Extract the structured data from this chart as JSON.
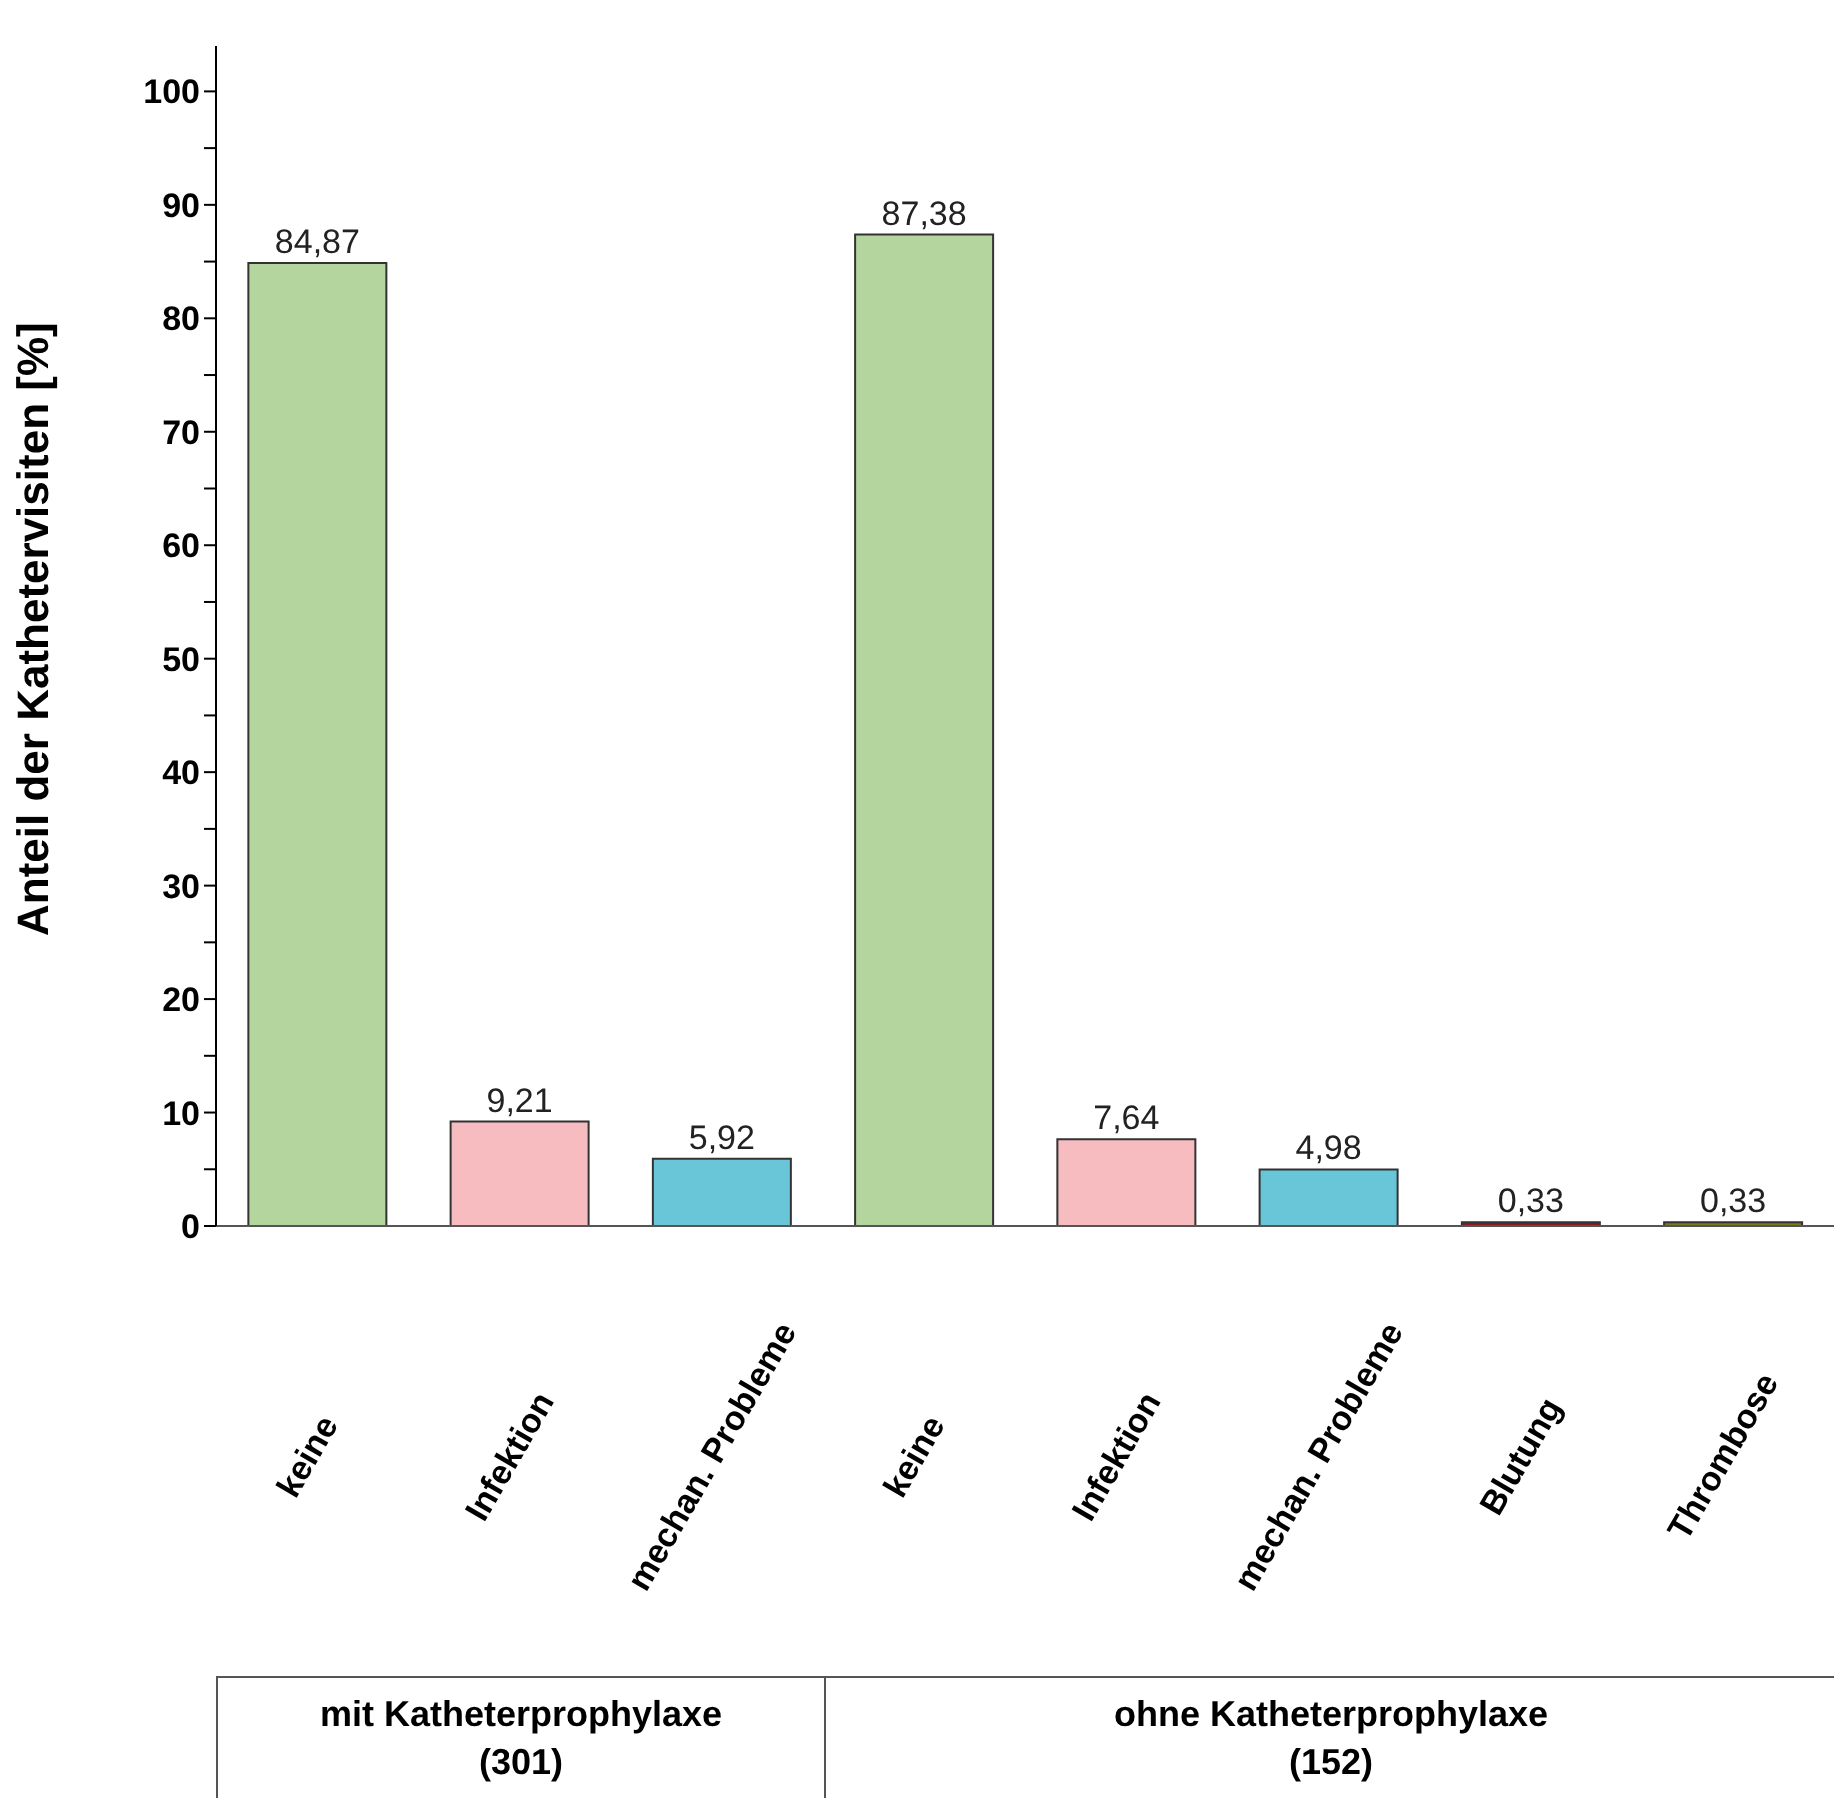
{
  "chart_data": {
    "type": "bar",
    "ylabel": "Anteil der Kathetervisiten [%]",
    "categories": [
      "keine",
      "Infektion",
      "mechan. Probleme",
      "keine",
      "Infektion",
      "mechan. Probleme",
      "Blutung",
      "Thrombose"
    ],
    "values": [
      84.87,
      9.21,
      5.92,
      87.38,
      7.64,
      4.98,
      0.33,
      0.33
    ],
    "value_labels": [
      "84,87",
      "9,21",
      "5,92",
      "87,38",
      "7,64",
      "4,98",
      "0,33",
      "0,33"
    ],
    "colors": [
      "#b5d59e",
      "#f6bcbf",
      "#69c6d9",
      "#b5d59e",
      "#f6bcbf",
      "#69c6d9",
      "#8b1a1a",
      "#7a7a1a"
    ],
    "ylim": [
      0,
      104
    ],
    "yticks": [
      0,
      {
        "value": 5,
        "label": null
      },
      10,
      {
        "value": 15,
        "label": null
      },
      20,
      {
        "value": 25,
        "label": null
      },
      30,
      {
        "value": 35,
        "label": null
      },
      40,
      {
        "value": 45,
        "label": null
      },
      50,
      {
        "value": 55,
        "label": null
      },
      60,
      {
        "value": 65,
        "label": null
      },
      70,
      {
        "value": 75,
        "label": null
      },
      80,
      {
        "value": 85,
        "label": null
      },
      90,
      {
        "value": 95,
        "label": null
      },
      100
    ],
    "annotations": [
      "mit Katheterprophylaxe\n(301)",
      "ohne Katheterprophylaxe\n(152)"
    ],
    "grid": false
  }
}
